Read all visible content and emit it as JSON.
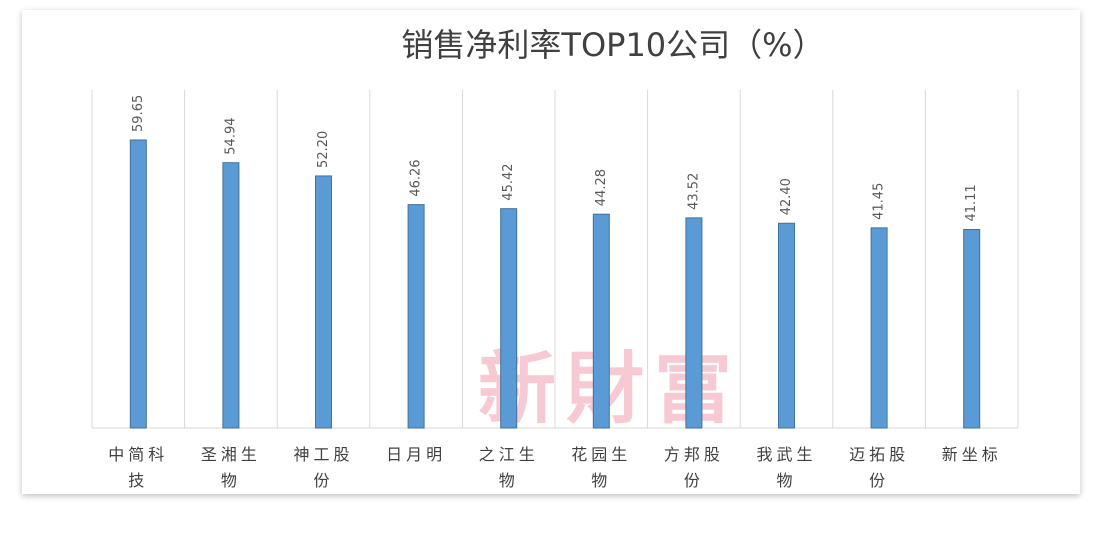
{
  "chart_data": {
    "type": "bar",
    "title": "销售净利率TOP10公司（%）",
    "categories": [
      "中简科技",
      "圣湘生物",
      "神工股份",
      "日月明",
      "之江生物",
      "花园生物",
      "方邦股份",
      "我武生物",
      "迈拓股份",
      "新坐标"
    ],
    "values": [
      59.65,
      54.94,
      52.2,
      46.26,
      45.42,
      44.28,
      43.52,
      42.4,
      41.45,
      41.11
    ],
    "value_labels": [
      "59.65",
      "54.94",
      "52.20",
      "46.26",
      "45.42",
      "44.28",
      "43.52",
      "42.40",
      "41.45",
      "41.11"
    ],
    "color": "#5b9bd5",
    "ylim": [
      0,
      70
    ],
    "watermark": "新財富"
  }
}
